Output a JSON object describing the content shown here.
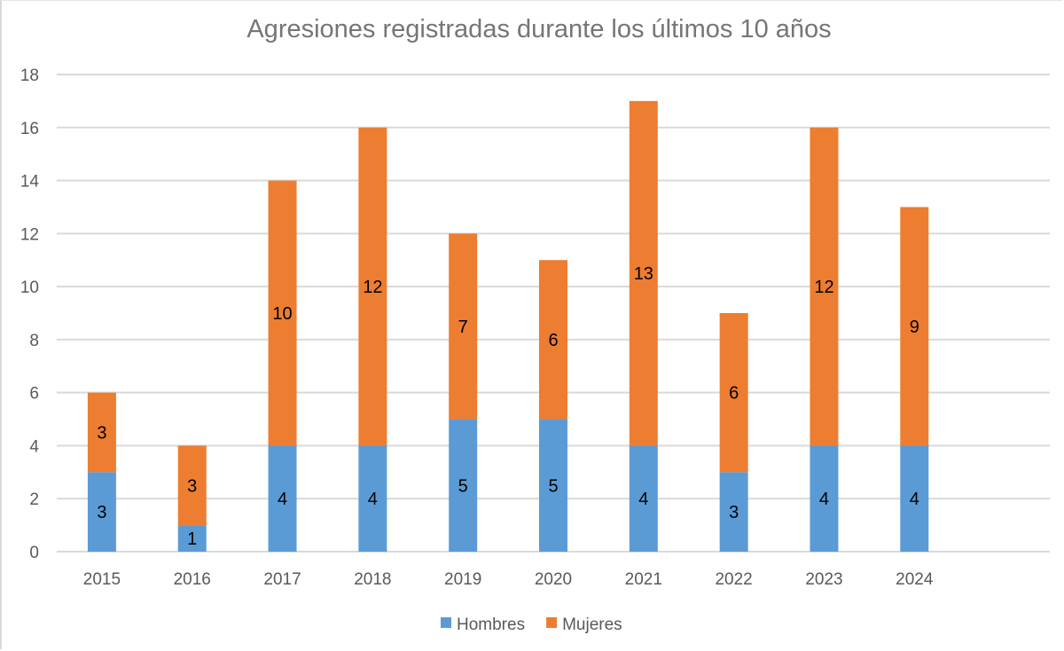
{
  "chart_data": {
    "type": "bar",
    "stacked": true,
    "title": "Agresiones registradas durante los últimos 10 años",
    "xlabel": "",
    "ylabel": "",
    "categories": [
      "2015",
      "2016",
      "2017",
      "2018",
      "2019",
      "2020",
      "2021",
      "2022",
      "2023",
      "2024"
    ],
    "series": [
      {
        "name": "Hombres",
        "color": "#5b9bd5",
        "values": [
          3,
          1,
          4,
          4,
          5,
          5,
          4,
          3,
          4,
          4
        ]
      },
      {
        "name": "Mujeres",
        "color": "#ed7d31",
        "values": [
          3,
          3,
          10,
          12,
          7,
          6,
          13,
          6,
          12,
          9
        ]
      }
    ],
    "ylim": [
      0,
      18
    ],
    "yticks": [
      0,
      2,
      4,
      6,
      8,
      10,
      12,
      14,
      16,
      18
    ],
    "grid": true,
    "data_labels": true,
    "legend": "bottom-center",
    "colors": {
      "gridline": "#d9d9d9",
      "text": "#595959",
      "title": "#757575"
    }
  }
}
